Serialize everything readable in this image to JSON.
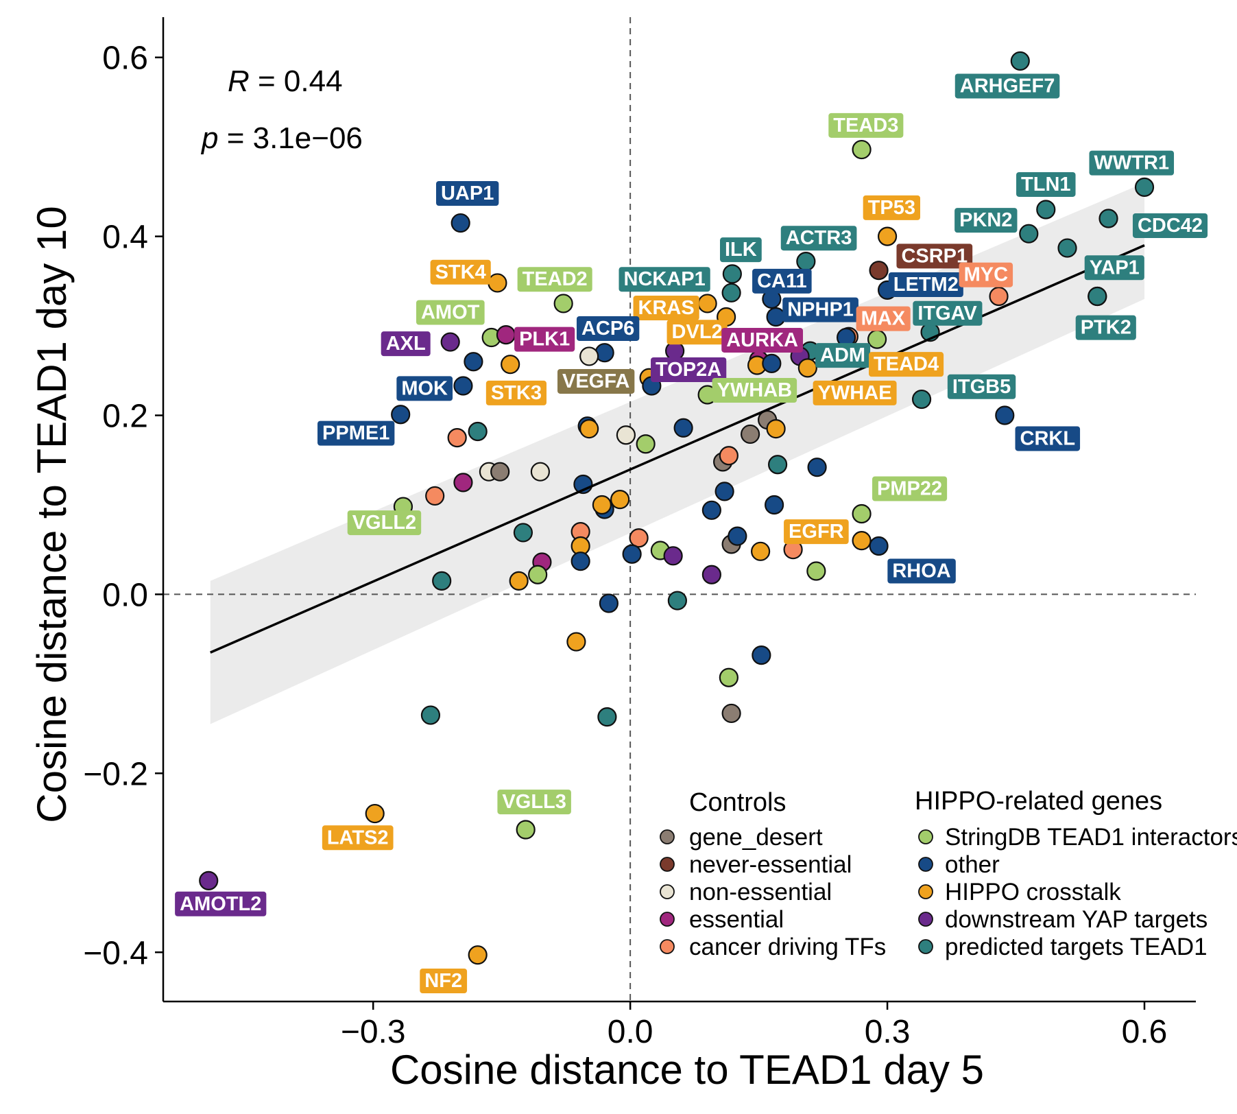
{
  "chart_data": {
    "type": "scatter",
    "xlabel": "Cosine distance to TEAD1 day 5",
    "ylabel": "Cosine distance to TEAD1 day 10",
    "xlim": [
      -0.545,
      0.66
    ],
    "ylim": [
      -0.455,
      0.645
    ],
    "x_ticks": [
      -0.3,
      0.0,
      0.3,
      0.6
    ],
    "x_tick_labels": [
      "−0.3",
      "0.0",
      "0.3",
      "0.6"
    ],
    "y_ticks": [
      -0.4,
      -0.2,
      0.0,
      0.2,
      0.4,
      0.6
    ],
    "y_tick_labels": [
      "−0.4",
      "−0.2",
      "0.0",
      "0.2",
      "0.4",
      "0.6"
    ],
    "stats": {
      "r_symbol": "R",
      "r_value": " = 0.44",
      "p_symbol": "p",
      "p_value": " = 3.1e−06"
    },
    "regression": {
      "x": [
        -0.49,
        0.6
      ],
      "y": [
        -0.065,
        0.39
      ],
      "band_lower": [
        -0.145,
        0.33
      ],
      "band_upper": [
        0.015,
        0.46
      ]
    },
    "colors": {
      "gene_desert": "#8b7d72",
      "never_essential": "#7a3a2c",
      "non_essential": "#e9e4d4",
      "essential": "#a0277e",
      "cancer_tf": "#f58a60",
      "stringdb": "#a3cd6b",
      "other": "#174a86",
      "hippo_crosstalk": "#efa21f",
      "yap_targets": "#6a2a8c",
      "tead1_targets": "#2e7f7e",
      "label_olive": "#87774a",
      "label_brown": "#7a3a2c",
      "label_coral": "#f58a60",
      "label_teal": "#2e7f7e"
    },
    "legend": {
      "controls_title": "Controls",
      "hippo_title": "HIPPO-related genes",
      "controls": [
        {
          "label": "gene_desert",
          "color": "#8b7d72"
        },
        {
          "label": "never-essential",
          "color": "#7a3a2c"
        },
        {
          "label": "non-essential",
          "color": "#e9e4d4"
        },
        {
          "label": "essential",
          "color": "#a0277e"
        },
        {
          "label": "cancer driving TFs",
          "color": "#f58a60"
        }
      ],
      "hippo": [
        {
          "label": "StringDB TEAD1 interactors",
          "color": "#a3cd6b"
        },
        {
          "label": "other",
          "color": "#174a86"
        },
        {
          "label": "HIPPO crosstalk",
          "color": "#efa21f"
        },
        {
          "label": "downstream YAP targets",
          "color": "#6a2a8c"
        },
        {
          "label": "predicted targets TEAD1",
          "color": "#2e7f7e"
        }
      ]
    },
    "points": [
      {
        "x": 0.455,
        "y": 0.596,
        "c": "tead1_targets",
        "label": "ARHGEF7",
        "lx": 0.44,
        "ly": 0.568
      },
      {
        "x": 0.27,
        "y": 0.497,
        "c": "stringdb",
        "label": "TEAD3",
        "lx": 0.275,
        "ly": 0.524
      },
      {
        "x": 0.6,
        "y": 0.455,
        "c": "tead1_targets",
        "label": "WWTR1",
        "lx": 0.585,
        "ly": 0.482
      },
      {
        "x": 0.485,
        "y": 0.43,
        "c": "tead1_targets",
        "label": "TLN1",
        "lx": 0.485,
        "ly": 0.458
      },
      {
        "x": 0.465,
        "y": 0.403,
        "c": "tead1_targets",
        "label": "PKN2",
        "lx": 0.415,
        "ly": 0.418
      },
      {
        "x": 0.558,
        "y": 0.42,
        "c": "tead1_targets",
        "label": "CDC42",
        "lx": 0.63,
        "ly": 0.412
      },
      {
        "x": 0.51,
        "y": 0.387,
        "c": "tead1_targets"
      },
      {
        "x": 0.545,
        "y": 0.333,
        "c": "tead1_targets",
        "label": "YAP1",
        "lx": 0.565,
        "ly": 0.365
      },
      {
        "x": 0.545,
        "y": 0.333,
        "c": "tead1_targets",
        "label": "PTK2",
        "lx": 0.555,
        "ly": 0.298
      },
      {
        "x": -0.198,
        "y": 0.415,
        "c": "other",
        "label": "UAP1",
        "lx": -0.19,
        "ly": 0.448
      },
      {
        "x": 0.3,
        "y": 0.4,
        "c": "hippo_crosstalk",
        "label": "TP53",
        "lx": 0.305,
        "ly": 0.432
      },
      {
        "x": 0.205,
        "y": 0.372,
        "c": "tead1_targets",
        "label": "ACTR3",
        "lx": 0.22,
        "ly": 0.398
      },
      {
        "x": 0.29,
        "y": 0.362,
        "c": "never_essential",
        "label": "CSRP1",
        "lx": 0.355,
        "ly": 0.378
      },
      {
        "x": 0.3,
        "y": 0.34,
        "c": "other",
        "label": "LETM2",
        "lx": 0.345,
        "ly": 0.346
      },
      {
        "x": 0.43,
        "y": 0.333,
        "c": "cancer_tf",
        "label": "MYC",
        "lx": 0.415,
        "ly": 0.357
      },
      {
        "x": 0.119,
        "y": 0.358,
        "c": "tead1_targets",
        "label": "ILK",
        "lx": 0.129,
        "ly": 0.385
      },
      {
        "x": 0.118,
        "y": 0.337,
        "c": "tead1_targets",
        "label": "NCKAP1",
        "lx": 0.04,
        "ly": 0.352
      },
      {
        "x": 0.165,
        "y": 0.33,
        "c": "other",
        "label": "CA11",
        "lx": 0.177,
        "ly": 0.35
      },
      {
        "x": 0.17,
        "y": 0.31,
        "c": "other",
        "label": "NPHP1",
        "lx": 0.222,
        "ly": 0.318
      },
      {
        "x": -0.155,
        "y": 0.348,
        "c": "hippo_crosstalk",
        "label": "STK4",
        "lx": -0.198,
        "ly": 0.36
      },
      {
        "x": -0.078,
        "y": 0.325,
        "c": "stringdb",
        "label": "TEAD2",
        "lx": -0.088,
        "ly": 0.352
      },
      {
        "x": 0.09,
        "y": 0.325,
        "c": "hippo_crosstalk",
        "label": "KRAS",
        "lx": 0.042,
        "ly": 0.32
      },
      {
        "x": 0.112,
        "y": 0.31,
        "c": "hippo_crosstalk",
        "label": "DVL2",
        "lx": 0.078,
        "ly": 0.293
      },
      {
        "x": 0.255,
        "y": 0.288,
        "c": "cancer_tf",
        "label": "MAX",
        "lx": 0.295,
        "ly": 0.308
      },
      {
        "x": 0.35,
        "y": 0.293,
        "c": "tead1_targets",
        "label": "ITGAV",
        "lx": 0.37,
        "ly": 0.314
      },
      {
        "x": 0.288,
        "y": 0.285,
        "c": "stringdb"
      },
      {
        "x": 0.252,
        "y": 0.287,
        "c": "other"
      },
      {
        "x": -0.21,
        "y": 0.282,
        "c": "yap_targets",
        "label": "AXL",
        "lx": -0.262,
        "ly": 0.28
      },
      {
        "x": -0.162,
        "y": 0.287,
        "c": "stringdb",
        "label": "AMOT",
        "lx": -0.21,
        "ly": 0.315
      },
      {
        "x": -0.145,
        "y": 0.29,
        "c": "essential",
        "label": "PLK1",
        "lx": -0.1,
        "ly": 0.285
      },
      {
        "x": -0.03,
        "y": 0.27,
        "c": "other",
        "label": "ACP6",
        "lx": -0.026,
        "ly": 0.297
      },
      {
        "x": -0.048,
        "y": 0.266,
        "c": "non_essential"
      },
      {
        "x": 0.052,
        "y": 0.272,
        "c": "yap_targets",
        "label": "TOP2A",
        "lx": 0.068,
        "ly": 0.251
      },
      {
        "x": 0.15,
        "y": 0.262,
        "c": "essential",
        "label": "AURKA",
        "lx": 0.154,
        "ly": 0.284
      },
      {
        "x": 0.148,
        "y": 0.256,
        "c": "hippo_crosstalk"
      },
      {
        "x": 0.165,
        "y": 0.258,
        "c": "other"
      },
      {
        "x": 0.21,
        "y": 0.272,
        "c": "tead1_targets",
        "label": "ADM",
        "lx": 0.248,
        "ly": 0.267
      },
      {
        "x": 0.198,
        "y": 0.266,
        "c": "yap_targets"
      },
      {
        "x": 0.207,
        "y": 0.253,
        "c": "hippo_crosstalk",
        "label": "TEAD4",
        "lx": 0.322,
        "ly": 0.257
      },
      {
        "x": -0.183,
        "y": 0.26,
        "c": "other"
      },
      {
        "x": -0.14,
        "y": 0.257,
        "c": "hippo_crosstalk",
        "label": "STK3",
        "lx": -0.133,
        "ly": 0.225
      },
      {
        "x": -0.195,
        "y": 0.233,
        "c": "other",
        "label": "MOK",
        "lx": -0.24,
        "ly": 0.23
      },
      {
        "x": 0.022,
        "y": 0.242,
        "c": "hippo_crosstalk",
        "label": "VEGFA",
        "lx": -0.04,
        "ly": 0.238
      },
      {
        "x": 0.025,
        "y": 0.233,
        "c": "other"
      },
      {
        "x": 0.09,
        "y": 0.223,
        "c": "stringdb",
        "label": "YWHAB",
        "lx": 0.145,
        "ly": 0.228
      },
      {
        "x": 0.225,
        "y": 0.225,
        "c": "hippo_crosstalk",
        "label": "YWHAE",
        "lx": 0.262,
        "ly": 0.225
      },
      {
        "x": 0.34,
        "y": 0.218,
        "c": "tead1_targets",
        "label": "ITGB5",
        "lx": 0.41,
        "ly": 0.232
      },
      {
        "x": 0.437,
        "y": 0.2,
        "c": "other",
        "label": "CRKL",
        "lx": 0.487,
        "ly": 0.174
      },
      {
        "x": -0.268,
        "y": 0.201,
        "c": "other",
        "label": "PPME1",
        "lx": -0.32,
        "ly": 0.18
      },
      {
        "x": -0.202,
        "y": 0.175,
        "c": "cancer_tf"
      },
      {
        "x": -0.178,
        "y": 0.182,
        "c": "tead1_targets"
      },
      {
        "x": -0.05,
        "y": 0.188,
        "c": "other"
      },
      {
        "x": -0.048,
        "y": 0.185,
        "c": "hippo_crosstalk"
      },
      {
        "x": -0.005,
        "y": 0.178,
        "c": "non_essential"
      },
      {
        "x": 0.018,
        "y": 0.168,
        "c": "stringdb"
      },
      {
        "x": 0.062,
        "y": 0.186,
        "c": "other"
      },
      {
        "x": 0.14,
        "y": 0.179,
        "c": "gene_desert"
      },
      {
        "x": 0.16,
        "y": 0.195,
        "c": "gene_desert"
      },
      {
        "x": 0.17,
        "y": 0.185,
        "c": "hippo_crosstalk"
      },
      {
        "x": 0.108,
        "y": 0.148,
        "c": "gene_desert"
      },
      {
        "x": 0.115,
        "y": 0.155,
        "c": "cancer_tf"
      },
      {
        "x": 0.172,
        "y": 0.145,
        "c": "tead1_targets"
      },
      {
        "x": 0.218,
        "y": 0.142,
        "c": "other"
      },
      {
        "x": -0.165,
        "y": 0.137,
        "c": "non_essential"
      },
      {
        "x": -0.152,
        "y": 0.137,
        "c": "gene_desert"
      },
      {
        "x": -0.105,
        "y": 0.137,
        "c": "non_essential"
      },
      {
        "x": -0.195,
        "y": 0.125,
        "c": "essential"
      },
      {
        "x": -0.055,
        "y": 0.123,
        "c": "other"
      },
      {
        "x": 0.11,
        "y": 0.115,
        "c": "other"
      },
      {
        "x": -0.228,
        "y": 0.11,
        "c": "cancer_tf"
      },
      {
        "x": -0.265,
        "y": 0.098,
        "c": "stringdb",
        "label": "VGLL2",
        "lx": -0.287,
        "ly": 0.08
      },
      {
        "x": -0.03,
        "y": 0.095,
        "c": "other"
      },
      {
        "x": -0.033,
        "y": 0.1,
        "c": "hippo_crosstalk"
      },
      {
        "x": -0.012,
        "y": 0.106,
        "c": "hippo_crosstalk"
      },
      {
        "x": 0.168,
        "y": 0.1,
        "c": "other"
      },
      {
        "x": 0.095,
        "y": 0.094,
        "c": "other"
      },
      {
        "x": 0.27,
        "y": 0.09,
        "c": "stringdb",
        "label": "PMP22",
        "lx": 0.326,
        "ly": 0.118
      },
      {
        "x": 0.27,
        "y": 0.06,
        "c": "hippo_crosstalk",
        "label": "EGFR",
        "lx": 0.217,
        "ly": 0.07
      },
      {
        "x": 0.29,
        "y": 0.054,
        "c": "other",
        "label": "RHOA",
        "lx": 0.34,
        "ly": 0.026
      },
      {
        "x": 0.19,
        "y": 0.05,
        "c": "cancer_tf"
      },
      {
        "x": 0.152,
        "y": 0.048,
        "c": "hippo_crosstalk"
      },
      {
        "x": -0.125,
        "y": 0.069,
        "c": "tead1_targets"
      },
      {
        "x": -0.058,
        "y": 0.07,
        "c": "cancer_tf"
      },
      {
        "x": -0.058,
        "y": 0.054,
        "c": "hippo_crosstalk"
      },
      {
        "x": 0.01,
        "y": 0.063,
        "c": "cancer_tf"
      },
      {
        "x": 0.118,
        "y": 0.056,
        "c": "gene_desert"
      },
      {
        "x": 0.125,
        "y": 0.065,
        "c": "other"
      },
      {
        "x": 0.002,
        "y": 0.045,
        "c": "other"
      },
      {
        "x": 0.035,
        "y": 0.049,
        "c": "stringdb"
      },
      {
        "x": 0.05,
        "y": 0.043,
        "c": "yap_targets"
      },
      {
        "x": -0.058,
        "y": 0.037,
        "c": "other"
      },
      {
        "x": -0.103,
        "y": 0.036,
        "c": "essential"
      },
      {
        "x": -0.108,
        "y": 0.022,
        "c": "stringdb"
      },
      {
        "x": -0.13,
        "y": 0.015,
        "c": "hippo_crosstalk"
      },
      {
        "x": 0.095,
        "y": 0.022,
        "c": "yap_targets"
      },
      {
        "x": 0.217,
        "y": 0.026,
        "c": "stringdb"
      },
      {
        "x": -0.22,
        "y": 0.015,
        "c": "tead1_targets"
      },
      {
        "x": -0.025,
        "y": -0.01,
        "c": "other"
      },
      {
        "x": 0.055,
        "y": -0.007,
        "c": "tead1_targets"
      },
      {
        "x": -0.063,
        "y": -0.053,
        "c": "hippo_crosstalk"
      },
      {
        "x": 0.153,
        "y": -0.068,
        "c": "other"
      },
      {
        "x": 0.115,
        "y": -0.093,
        "c": "stringdb"
      },
      {
        "x": 0.118,
        "y": -0.133,
        "c": "gene_desert"
      },
      {
        "x": -0.233,
        "y": -0.135,
        "c": "tead1_targets"
      },
      {
        "x": -0.027,
        "y": -0.137,
        "c": "tead1_targets"
      },
      {
        "x": -0.298,
        "y": -0.245,
        "c": "hippo_crosstalk",
        "label": "LATS2",
        "lx": -0.318,
        "ly": -0.272
      },
      {
        "x": -0.122,
        "y": -0.263,
        "c": "stringdb",
        "label": "VGLL3",
        "lx": -0.112,
        "ly": -0.232
      },
      {
        "x": -0.492,
        "y": -0.32,
        "c": "yap_targets",
        "label": "AMOTL2",
        "lx": -0.478,
        "ly": -0.346
      },
      {
        "x": -0.178,
        "y": -0.403,
        "c": "hippo_crosstalk",
        "label": "NF2",
        "lx": -0.218,
        "ly": -0.432
      }
    ]
  }
}
